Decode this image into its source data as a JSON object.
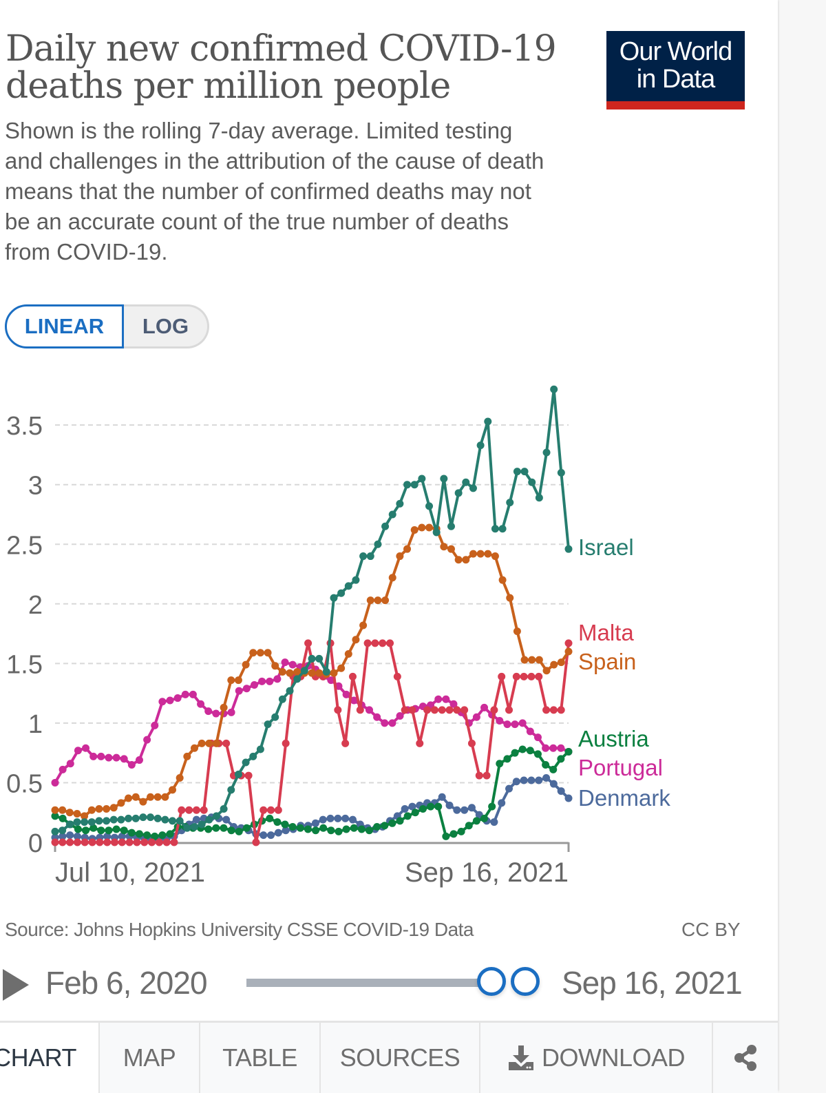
{
  "header": {
    "title": "Daily new confirmed COVID-19 deaths per million people",
    "subtitle": "Shown is the rolling 7-day average. Limited testing and challenges in the attribution of the cause of death means that the number of confirmed deaths may not be an accurate count of the true number of deaths from COVID-19.",
    "logo_line1": "Our World",
    "logo_line2": "in Data"
  },
  "controls": {
    "scale_linear": "LINEAR",
    "scale_log": "LOG",
    "active_scale": "LINEAR"
  },
  "colors": {
    "accent": "#1b6ec2",
    "logo_bg": "#002147",
    "logo_bar": "#ce261e",
    "Israel": "#267d6f",
    "Malta": "#d73c50",
    "Spain": "#c8611c",
    "Austria": "#0b8040",
    "Portugal": "#cc2b99",
    "Denmark": "#4c6a9c"
  },
  "chart_data": {
    "type": "line",
    "title": "Daily new confirmed COVID-19 deaths per million people",
    "xlabel": "",
    "ylabel": "",
    "x_start": "Jul 10, 2021",
    "x_end": "Sep 16, 2021",
    "x_tick_labels": [
      "Jul 10, 2021",
      "Sep 16, 2021"
    ],
    "y_ticks": [
      0,
      0.5,
      1,
      1.5,
      2,
      2.5,
      3,
      3.5
    ],
    "y_tick_labels": [
      "0",
      "0.5",
      "1",
      "1.5",
      "2",
      "2.5",
      "3",
      "3.5"
    ],
    "ylim": [
      0,
      3.8
    ],
    "grid": true,
    "legend": "right (end-of-line labels)",
    "series": [
      {
        "name": "Israel",
        "values": [
          0.09,
          0.1,
          0.15,
          0.17,
          0.17,
          0.17,
          0.18,
          0.18,
          0.19,
          0.19,
          0.2,
          0.2,
          0.21,
          0.21,
          0.2,
          0.19,
          0.18,
          0.18,
          0.12,
          0.13,
          0.15,
          0.19,
          0.22,
          0.28,
          0.44,
          0.57,
          0.67,
          0.72,
          0.78,
          0.99,
          1.05,
          1.2,
          1.27,
          1.37,
          1.44,
          1.54,
          1.54,
          1.43,
          2.05,
          2.09,
          2.15,
          2.2,
          2.4,
          2.4,
          2.5,
          2.65,
          2.75,
          2.84,
          3.0,
          3.0,
          3.05,
          2.82,
          2.6,
          3.05,
          2.65,
          2.93,
          3.02,
          2.97,
          3.33,
          3.53,
          2.63,
          2.63,
          2.85,
          3.11,
          3.11,
          3.02,
          2.89,
          3.27,
          3.8,
          3.1,
          2.46
        ]
      },
      {
        "name": "Malta",
        "values": [
          0,
          0,
          0,
          0,
          0,
          0,
          0,
          0,
          0,
          0,
          0,
          0,
          0,
          0,
          0,
          0,
          0,
          0.27,
          0.27,
          0.27,
          0.27,
          0.83,
          0.83,
          0.83,
          0.56,
          0.56,
          0.56,
          0,
          0.27,
          0.27,
          0.27,
          0.83,
          1.39,
          1.39,
          1.67,
          1.39,
          1.39,
          1.67,
          1.11,
          0.83,
          1.39,
          1.11,
          1.67,
          1.67,
          1.67,
          1.67,
          1.39,
          1.11,
          1.11,
          0.83,
          1.11,
          1.11,
          1.11,
          1.11,
          1.11,
          1.11,
          0.83,
          0.56,
          0.56,
          1.11,
          1.39,
          1.11,
          1.39,
          1.39,
          1.39,
          1.39,
          1.11,
          1.11,
          1.11,
          1.67
        ]
      },
      {
        "name": "Spain",
        "values": [
          0.27,
          0.27,
          0.25,
          0.24,
          0.22,
          0.27,
          0.28,
          0.28,
          0.29,
          0.33,
          0.37,
          0.38,
          0.34,
          0.38,
          0.38,
          0.38,
          0.44,
          0.54,
          0.72,
          0.79,
          0.83,
          0.83,
          0.83,
          1.13,
          1.36,
          1.36,
          1.49,
          1.59,
          1.59,
          1.59,
          1.48,
          1.43,
          1.42,
          1.43,
          1.42,
          1.42,
          1.42,
          1.41,
          1.42,
          1.46,
          1.58,
          1.7,
          1.82,
          2.03,
          2.03,
          2.03,
          2.22,
          2.4,
          2.46,
          2.62,
          2.64,
          2.64,
          2.63,
          2.48,
          2.46,
          2.37,
          2.37,
          2.42,
          2.42,
          2.42,
          2.4,
          2.2,
          2.05,
          1.77,
          1.53,
          1.53,
          1.53,
          1.44,
          1.49,
          1.51,
          1.6
        ]
      },
      {
        "name": "Austria",
        "values": [
          0.22,
          0.2,
          0.15,
          0.11,
          0.1,
          0.12,
          0.1,
          0.1,
          0.11,
          0.1,
          0.08,
          0.07,
          0.06,
          0.05,
          0.06,
          0.07,
          0.13,
          0.13,
          0.12,
          0.12,
          0.11,
          0.12,
          0.12,
          0.1,
          0.09,
          0.12,
          0.15,
          0.18,
          0.2,
          0.17,
          0.15,
          0.13,
          0.12,
          0.11,
          0.1,
          0.12,
          0.1,
          0.09,
          0.11,
          0.12,
          0.11,
          0.1,
          0.13,
          0.14,
          0.16,
          0.18,
          0.22,
          0.25,
          0.28,
          0.3,
          0.3,
          0.05,
          0.07,
          0.09,
          0.14,
          0.18,
          0.2,
          0.3,
          0.66,
          0.7,
          0.75,
          0.78,
          0.77,
          0.74,
          0.65,
          0.61,
          0.7,
          0.76
        ]
      },
      {
        "name": "Portugal",
        "values": [
          0.5,
          0.61,
          0.66,
          0.77,
          0.79,
          0.72,
          0.72,
          0.71,
          0.71,
          0.7,
          0.65,
          0.69,
          0.86,
          0.98,
          1.18,
          1.19,
          1.21,
          1.24,
          1.24,
          1.16,
          1.1,
          1.08,
          1.08,
          1.09,
          1.27,
          1.29,
          1.32,
          1.35,
          1.35,
          1.37,
          1.51,
          1.49,
          1.47,
          1.48,
          1.45,
          1.39,
          1.36,
          1.31,
          1.24,
          1.19,
          1.15,
          1.11,
          1.05,
          1.0,
          1.0,
          1.06,
          1.11,
          1.12,
          1.14,
          1.15,
          1.2,
          1.2,
          1.16,
          1.09,
          1.0,
          1.05,
          1.13,
          1.07,
          1.02,
          0.99,
          0.99,
          1.0,
          0.93,
          0.88,
          0.79,
          0.79,
          0.79,
          0.76
        ]
      },
      {
        "name": "Denmark",
        "values": [
          0.04,
          0.05,
          0.06,
          0.05,
          0.04,
          0.03,
          0.04,
          0.05,
          0.04,
          0.05,
          0.05,
          0.04,
          0.03,
          0.02,
          0.02,
          0.03,
          0.05,
          0.1,
          0.15,
          0.19,
          0.2,
          0.21,
          0.2,
          0.19,
          0.13,
          0.12,
          0.1,
          0.07,
          0.06,
          0.06,
          0.08,
          0.1,
          0.11,
          0.14,
          0.14,
          0.16,
          0.19,
          0.2,
          0.2,
          0.2,
          0.19,
          0.15,
          0.12,
          0.11,
          0.13,
          0.18,
          0.22,
          0.28,
          0.3,
          0.31,
          0.33,
          0.33,
          0.38,
          0.31,
          0.27,
          0.27,
          0.29,
          0.23,
          0.18,
          0.17,
          0.33,
          0.45,
          0.51,
          0.52,
          0.52,
          0.52,
          0.54,
          0.49,
          0.43,
          0.37
        ]
      }
    ]
  },
  "footer": {
    "source": "Source: Johns Hopkins University CSSE COVID-19 Data",
    "license": "CC BY"
  },
  "timeline": {
    "start_label": "Feb 6, 2020",
    "end_label": "Sep 16, 2021",
    "range_start_fraction": 0.955,
    "range_end_fraction": 1.0
  },
  "tabs": [
    {
      "label": "CHART",
      "active": true
    },
    {
      "label": "MAP",
      "active": false
    },
    {
      "label": "TABLE",
      "active": false
    },
    {
      "label": "SOURCES",
      "active": false
    },
    {
      "label": "DOWNLOAD",
      "active": false,
      "icon": "download-icon"
    },
    {
      "label": "",
      "active": false,
      "icon": "share-icon"
    }
  ]
}
